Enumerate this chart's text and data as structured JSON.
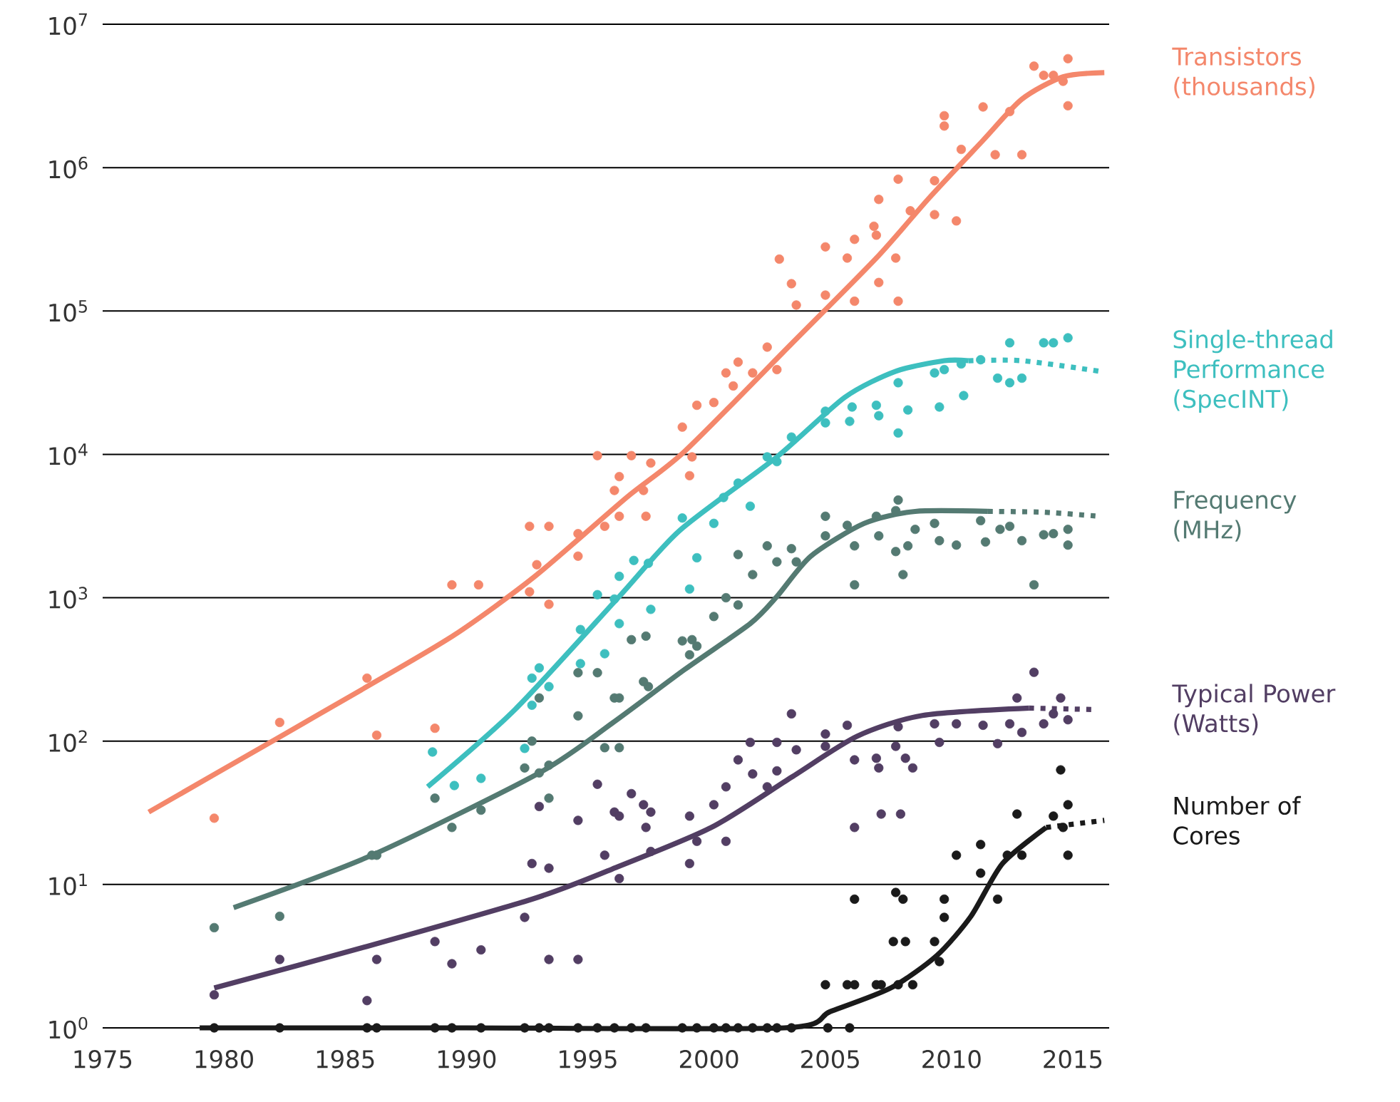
{
  "chart_data": {
    "type": "scatter",
    "log": "y",
    "grid": "y",
    "marker": "circle",
    "xlim": [
      1975,
      2016.5
    ],
    "xticks": [
      1975,
      1980,
      1985,
      1990,
      1995,
      2000,
      2005,
      2010,
      2015
    ],
    "ylim": [
      1,
      10000000
    ],
    "yticks": [
      {
        "value": 1,
        "label": "10$^{0}$"
      },
      {
        "value": 10,
        "label": "10$^{1}$"
      },
      {
        "value": 100,
        "label": "10$^{2}$"
      },
      {
        "value": 1000,
        "label": "10$^{3}$"
      },
      {
        "value": 10000,
        "label": "10$^{4}$"
      },
      {
        "value": 100000,
        "label": "10$^{5}$"
      },
      {
        "value": 1000000,
        "label": "10$^{6}$"
      },
      {
        "value": 10000000,
        "label": "10$^{7}$"
      }
    ],
    "series": [
      {
        "name": "Transistors (thousands)",
        "color": "#f4876b",
        "x": [
          1979.6,
          1982.3,
          1985.9,
          1986.3,
          1988.7,
          1989.4,
          1990.5,
          1992.6,
          1993.4,
          1992.9,
          1992.6,
          1993.4,
          1994.6,
          1994.6,
          1995.4,
          1996.3,
          1996.1,
          1995.7,
          1996.3,
          1996.8,
          1997.6,
          1997.3,
          1997.4,
          1998.9,
          1999.3,
          1999.2,
          1999.5,
          2000.2,
          2000.7,
          2001.2,
          2001.0,
          2001.8,
          2002.4,
          2002.8,
          2003.4,
          2003.6,
          2002.9,
          2004.8,
          2004.8,
          2005.7,
          2006.0,
          2006.0,
          2006.9,
          2007.0,
          2006.8,
          2007.0,
          2007.8,
          2007.8,
          2007.7,
          2008.3,
          2009.3,
          2009.3,
          2010.2,
          2009.7,
          2009.7,
          2010.4,
          2011.3,
          2011.8,
          2012.4,
          2012.9,
          2013.4,
          2013.8,
          2014.2,
          2014.8,
          2014.8,
          2014.6
        ],
        "values": [
          29,
          135,
          275,
          110,
          123,
          1230,
          1230,
          3150,
          3150,
          1700,
          1100,
          900,
          2800,
          1950,
          9800,
          7000,
          5600,
          3150,
          3700,
          9800,
          8700,
          5600,
          3700,
          15500,
          9600,
          7100,
          22000,
          23000,
          37000,
          44000,
          30000,
          37000,
          56000,
          39000,
          155000,
          110000,
          230000,
          129000,
          280000,
          234000,
          316000,
          117000,
          338000,
          600000,
          390000,
          158000,
          830000,
          117000,
          234000,
          500000,
          810000,
          470000,
          425000,
          2300000,
          1950000,
          1340000,
          2650000,
          1230000,
          2460000,
          1230000,
          5100000,
          4400000,
          4400000,
          5750000,
          2700000,
          4000000
        ]
      },
      {
        "type": "line",
        "marker": "none",
        "color": "#f4876b",
        "x": [
          1976.9,
          1982.3,
          1985.9,
          1989.5,
          1992.8,
          1996.6,
          1999.0,
          2003.4,
          2006.9,
          2009.1,
          2011.3,
          2012.9,
          2014.6,
          2016.3
        ],
        "values": [
          32,
          107,
          240,
          550,
          1400,
          5000,
          10500,
          59000,
          234000,
          620000,
          1550000,
          3000000,
          4300000,
          4600000
        ]
      },
      {
        "name": "Single-thread Performance (SpecINT)",
        "color": "#3dbfbf",
        "x": [
          1988.6,
          1989.5,
          1990.6,
          1992.4,
          1992.7,
          1992.7,
          1993.0,
          1993.4,
          1994.7,
          1994.7,
          1995.7,
          1995.4,
          1996.3,
          1996.3,
          1996.1,
          1996.9,
          1997.5,
          1997.6,
          1998.9,
          1999.2,
          1999.5,
          2000.2,
          2000.6,
          2001.2,
          2001.7,
          2002.4,
          2002.8,
          2003.4,
          2004.8,
          2004.8,
          2005.8,
          2005.9,
          2006.9,
          2007.0,
          2007.8,
          2008.2,
          2007.8,
          2009.3,
          2009.5,
          2010.5,
          2009.7,
          2010.4,
          2011.2,
          2011.9,
          2012.4,
          2012.9,
          2012.4,
          2013.8,
          2014.2,
          2014.8
        ],
        "values": [
          84,
          49,
          55,
          89,
          178,
          275,
          324,
          240,
          600,
          347,
          407,
          1050,
          1410,
          660,
          980,
          1820,
          1740,
          830,
          3600,
          1150,
          1900,
          3300,
          5000,
          6300,
          4350,
          9600,
          8900,
          13200,
          20000,
          16600,
          17000,
          21400,
          22000,
          18600,
          31600,
          20400,
          14100,
          37000,
          21400,
          25700,
          39000,
          42700,
          45700,
          34000,
          31600,
          34000,
          60000,
          60000,
          60000,
          65000
        ]
      },
      {
        "type": "line",
        "marker": "none",
        "color": "#3dbfbf",
        "x": [
          1988.4,
          1992.0,
          1996.3,
          1998.8,
          2002.8,
          2005.6,
          2007.7,
          2009.7,
          2010.7
        ],
        "values": [
          48,
          166,
          1020,
          2950,
          9600,
          25000,
          38000,
          45000,
          45000
        ]
      },
      {
        "type": "line",
        "marker": "none",
        "line_style": "dotted",
        "color": "#3dbfbf",
        "x": [
          2010.7,
          2012.9,
          2016.1
        ],
        "values": [
          45000,
          45000,
          38000
        ]
      },
      {
        "name": "Frequency (MHz)",
        "color": "#547a72",
        "x": [
          1979.6,
          1982.3,
          1986.1,
          1986.3,
          1988.7,
          1989.4,
          1990.6,
          1992.4,
          1992.7,
          1993.0,
          1993.0,
          1993.4,
          1993.4,
          1994.6,
          1994.6,
          1995.4,
          1995.7,
          1996.1,
          1996.3,
          1996.3,
          1996.8,
          1997.4,
          1997.5,
          1997.3,
          1998.9,
          1999.3,
          1999.5,
          1999.2,
          2000.2,
          2000.7,
          2001.2,
          2001.8,
          2001.2,
          2002.4,
          2002.8,
          2003.4,
          2003.6,
          2004.8,
          2004.8,
          2005.7,
          2006.0,
          2006.0,
          2006.9,
          2007.0,
          2007.8,
          2007.7,
          2007.7,
          2008.0,
          2008.2,
          2008.5,
          2009.3,
          2009.5,
          2010.2,
          2011.2,
          2011.4,
          2012.0,
          2012.4,
          2012.9,
          2013.4,
          2013.8,
          2014.2,
          2014.8,
          2014.8
        ],
        "values": [
          5,
          6,
          16,
          16,
          40,
          25,
          33,
          65,
          100,
          200,
          60,
          40,
          68,
          300,
          150,
          300,
          90,
          200,
          200,
          90,
          510,
          540,
          240,
          260,
          500,
          510,
          460,
          400,
          740,
          1000,
          890,
          1450,
          2000,
          2300,
          1780,
          2200,
          1780,
          3700,
          2700,
          3200,
          2300,
          1230,
          3700,
          2700,
          4800,
          4050,
          2100,
          1450,
          2300,
          3000,
          3300,
          2500,
          2330,
          3450,
          2450,
          3000,
          3150,
          2500,
          1230,
          2750,
          2800,
          3000,
          2330
        ]
      },
      {
        "type": "line",
        "marker": "none",
        "color": "#547a72",
        "x": [
          1980.4,
          1986.1,
          1993.0,
          1996.0,
          1999.0,
          2001.7,
          2002.8,
          2004.2,
          2006.4,
          2008.5,
          2011.5
        ],
        "values": [
          6.9,
          16,
          60,
          133,
          316,
          660,
          1020,
          1950,
          3300,
          4000,
          4000
        ]
      },
      {
        "type": "line",
        "marker": "none",
        "line_style": "dotted",
        "color": "#547a72",
        "x": [
          2011.5,
          2013.8,
          2016.1
        ],
        "values": [
          4000,
          3950,
          3700
        ]
      },
      {
        "name": "Typical Power (Watts)",
        "color": "#523e63",
        "x": [
          1979.6,
          1982.3,
          1985.9,
          1986.3,
          1988.7,
          1989.4,
          1990.6,
          1992.4,
          1992.7,
          1993.0,
          1993.4,
          1993.4,
          1994.6,
          1994.6,
          1995.4,
          1995.7,
          1996.1,
          1996.3,
          1996.3,
          1996.8,
          1997.3,
          1997.6,
          1997.4,
          1997.6,
          1999.2,
          1999.2,
          1999.5,
          2000.2,
          2000.7,
          2000.7,
          2001.2,
          2001.8,
          2001.7,
          2002.4,
          2002.8,
          2002.8,
          2003.4,
          2003.6,
          2004.8,
          2004.8,
          2005.7,
          2006.0,
          2006.0,
          2006.9,
          2007.0,
          2007.1,
          2007.8,
          2007.7,
          2007.9,
          2008.1,
          2008.4,
          2009.3,
          2009.5,
          2010.2,
          2011.3,
          2011.9,
          2012.4,
          2012.7,
          2012.9,
          2013.4,
          2013.8,
          2014.2,
          2014.5,
          2014.8
        ],
        "values": [
          1.7,
          3,
          1.55,
          3,
          4,
          2.8,
          3.5,
          5.9,
          14,
          35,
          13,
          3,
          28,
          3,
          50,
          16,
          32,
          30,
          11,
          43,
          36,
          32,
          25,
          17,
          30,
          14,
          20,
          36,
          48,
          20,
          74,
          59,
          98,
          48,
          62,
          98,
          155,
          87,
          112,
          92,
          129,
          74,
          25,
          76,
          65,
          31,
          126,
          92,
          31,
          76,
          65,
          132,
          98,
          132,
          129,
          96,
          132,
          200,
          115,
          302,
          132,
          155,
          200,
          141
        ]
      },
      {
        "type": "line",
        "marker": "none",
        "color": "#523e63",
        "x": [
          1979.6,
          1985.9,
          1992.7,
          1996.0,
          2000.1,
          2003.4,
          2006.1,
          2008.8,
          2013.2
        ],
        "values": [
          1.9,
          3.7,
          7.9,
          12.8,
          25,
          56,
          108,
          151,
          170
        ]
      },
      {
        "type": "line",
        "marker": "none",
        "line_style": "dotted",
        "color": "#523e63",
        "x": [
          2013.2,
          2015.9
        ],
        "values": [
          170,
          166
        ]
      },
      {
        "name": "Number of Cores",
        "color": "#1a1a1a",
        "x": [
          1979.6,
          1982.3,
          1985.9,
          1986.3,
          1988.7,
          1989.4,
          1990.6,
          1992.4,
          1993.0,
          1993.4,
          1994.6,
          1995.4,
          1996.1,
          1996.8,
          1997.4,
          1998.9,
          1999.5,
          2000.2,
          2000.7,
          2001.2,
          2001.8,
          2002.4,
          2002.8,
          2003.4,
          2004.9,
          2005.8,
          2004.8,
          2005.7,
          2006.0,
          2006.9,
          2007.1,
          2007.8,
          2008.4,
          2006.0,
          2007.7,
          2008.0,
          2007.6,
          2008.1,
          2009.3,
          2009.7,
          2009.7,
          2009.5,
          2010.2,
          2011.2,
          2011.2,
          2011.9,
          2012.3,
          2012.7,
          2012.9,
          2014.2,
          2014.5,
          2014.8,
          2014.8,
          2014.6
        ],
        "values": [
          1,
          1,
          1,
          1,
          1,
          1,
          1,
          1,
          1,
          1,
          1,
          1,
          1,
          1,
          1,
          1,
          1,
          1,
          1,
          1,
          1,
          1,
          1,
          1,
          1,
          1,
          2,
          2,
          2,
          2,
          2,
          2,
          2,
          7.9,
          8.8,
          7.9,
          4,
          4,
          4,
          7.9,
          5.9,
          2.9,
          16,
          19,
          12,
          7.9,
          16,
          31,
          16,
          30,
          63,
          36,
          16,
          25
        ]
      },
      {
        "type": "line",
        "marker": "none",
        "color": "#1a1a1a",
        "x": [
          1979.0,
          1990.0,
          2003.1,
          2005.0,
          2007.5,
          2009.4,
          2010.8,
          2012.1,
          2013.9
        ],
        "values": [
          1,
          1,
          1,
          1.3,
          1.9,
          3.2,
          6.0,
          14,
          25
        ]
      },
      {
        "type": "line",
        "marker": "none",
        "line_style": "dotted",
        "color": "#1a1a1a",
        "x": [
          2013.9,
          2016.3
        ],
        "values": [
          25,
          28
        ]
      }
    ]
  }
}
